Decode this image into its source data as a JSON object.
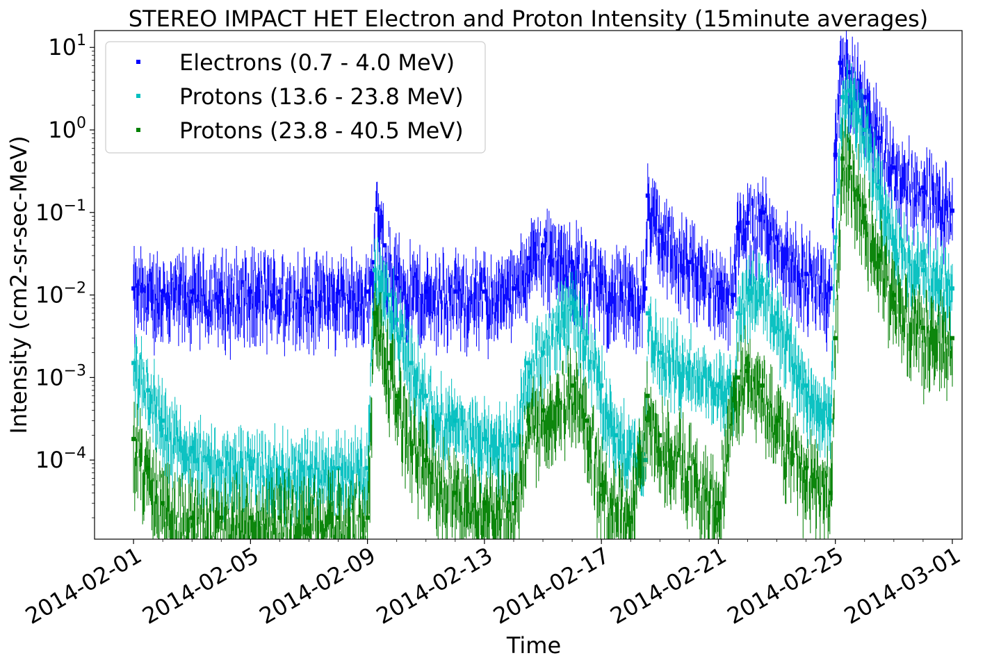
{
  "chart_data": {
    "type": "scatter",
    "title": "STEREO IMPACT HET Electron and Proton Intensity (15minute averages)",
    "xlabel": "Time",
    "ylabel": "Intensity (cm2-sr-sec-MeV)",
    "scale_y": "log",
    "xlim": [
      "2014-01-30T16:00",
      "2014-03-01T08:00"
    ],
    "ylim": [
      1.1e-05,
      16
    ],
    "grid": false,
    "legend_position": "top-left",
    "x_ticks": [
      "2014-02-01",
      "2014-02-05",
      "2014-02-09",
      "2014-02-13",
      "2014-02-17",
      "2014-02-21",
      "2014-02-25",
      "2014-03-01"
    ],
    "y_ticks": [
      {
        "value": 0.0001,
        "base": "10",
        "exp": "−4"
      },
      {
        "value": 0.001,
        "base": "10",
        "exp": "−3"
      },
      {
        "value": 0.01,
        "base": "10",
        "exp": "−2"
      },
      {
        "value": 0.1,
        "base": "10",
        "exp": "−1"
      },
      {
        "value": 1,
        "base": "10",
        "exp": "0"
      },
      {
        "value": 10,
        "base": "10",
        "exp": "1"
      }
    ],
    "series": [
      {
        "name": "Electrons (0.7 - 4.0 MeV)",
        "color": "#0000ff",
        "scatter_factor": 2.8,
        "points": [
          [
            "2014-02-01",
            0.012
          ],
          [
            "2014-02-02",
            0.011
          ],
          [
            "2014-02-03",
            0.011
          ],
          [
            "2014-02-04",
            0.011
          ],
          [
            "2014-02-05",
            0.011
          ],
          [
            "2014-02-06",
            0.011
          ],
          [
            "2014-02-07",
            0.011
          ],
          [
            "2014-02-08",
            0.011
          ],
          [
            "2014-02-09",
            0.011
          ],
          [
            "2014-02-09T05:00",
            0.025
          ],
          [
            "2014-02-09T08:00",
            0.11
          ],
          [
            "2014-02-09T14:00",
            0.04
          ],
          [
            "2014-02-10",
            0.016
          ],
          [
            "2014-02-11",
            0.011
          ],
          [
            "2014-02-12",
            0.011
          ],
          [
            "2014-02-13",
            0.011
          ],
          [
            "2014-02-14",
            0.012
          ],
          [
            "2014-02-14T12:00",
            0.028
          ],
          [
            "2014-02-15",
            0.04
          ],
          [
            "2014-02-16",
            0.025
          ],
          [
            "2014-02-17",
            0.014
          ],
          [
            "2014-02-18",
            0.01
          ],
          [
            "2014-02-18T12:00",
            0.012
          ],
          [
            "2014-02-18T14:00",
            0.16
          ],
          [
            "2014-02-19",
            0.06
          ],
          [
            "2014-02-20",
            0.025
          ],
          [
            "2014-02-21",
            0.014
          ],
          [
            "2014-02-21T12:00",
            0.01
          ],
          [
            "2014-02-21T16:00",
            0.065
          ],
          [
            "2014-02-22",
            0.075
          ],
          [
            "2014-02-22T12:00",
            0.1
          ],
          [
            "2014-02-23",
            0.05
          ],
          [
            "2014-02-24",
            0.018
          ],
          [
            "2014-02-24T20:00",
            0.012
          ],
          [
            "2014-02-25",
            0.5
          ],
          [
            "2014-02-25T04:00",
            6.5
          ],
          [
            "2014-02-25T12:00",
            5.0
          ],
          [
            "2014-02-26",
            2.5
          ],
          [
            "2014-02-26T12:00",
            0.8
          ],
          [
            "2014-02-27",
            0.35
          ],
          [
            "2014-02-28",
            0.2
          ],
          [
            "2014-03-01",
            0.105
          ]
        ]
      },
      {
        "name": "Protons (13.6 - 23.8 MeV)",
        "color": "#00bfbf",
        "scatter_factor": 2.4,
        "points": [
          [
            "2014-02-01",
            0.0015
          ],
          [
            "2014-02-01T12:00",
            0.0007
          ],
          [
            "2014-02-02",
            0.0003
          ],
          [
            "2014-02-03",
            0.00014
          ],
          [
            "2014-02-04",
            9e-05
          ],
          [
            "2014-02-05",
            8e-05
          ],
          [
            "2014-02-06",
            8e-05
          ],
          [
            "2014-02-07",
            8e-05
          ],
          [
            "2014-02-08",
            8e-05
          ],
          [
            "2014-02-09",
            8e-05
          ],
          [
            "2014-02-09T06:00",
            0.02
          ],
          [
            "2014-02-09T18:00",
            0.01
          ],
          [
            "2014-02-10",
            0.005
          ],
          [
            "2014-02-10T12:00",
            0.0015
          ],
          [
            "2014-02-11",
            0.0006
          ],
          [
            "2014-02-12",
            0.0003
          ],
          [
            "2014-02-13",
            0.00018
          ],
          [
            "2014-02-14",
            0.00015
          ],
          [
            "2014-02-14T12:00",
            0.0015
          ],
          [
            "2014-02-15",
            0.002
          ],
          [
            "2014-02-15T12:00",
            0.004
          ],
          [
            "2014-02-16",
            0.008
          ],
          [
            "2014-02-16T12:00",
            0.003
          ],
          [
            "2014-02-17",
            0.0008
          ],
          [
            "2014-02-17T12:00",
            0.0002
          ],
          [
            "2014-02-18T12:00",
            0.0001
          ],
          [
            "2014-02-18T14:00",
            0.006
          ],
          [
            "2014-02-19",
            0.002
          ],
          [
            "2014-02-20",
            0.0015
          ],
          [
            "2014-02-21",
            0.0008
          ],
          [
            "2014-02-21T12:00",
            0.0006
          ],
          [
            "2014-02-21T16:00",
            0.006
          ],
          [
            "2014-02-22",
            0.012
          ],
          [
            "2014-02-22T12:00",
            0.015
          ],
          [
            "2014-02-23",
            0.006
          ],
          [
            "2014-02-24",
            0.0008
          ],
          [
            "2014-02-24T20:00",
            0.0003
          ],
          [
            "2014-02-25",
            0.05
          ],
          [
            "2014-02-25T06:00",
            2.5
          ],
          [
            "2014-02-25T12:00",
            3.0
          ],
          [
            "2014-02-26",
            1.0
          ],
          [
            "2014-02-26T12:00",
            0.2
          ],
          [
            "2014-02-27",
            0.05
          ],
          [
            "2014-02-28",
            0.02
          ],
          [
            "2014-03-01",
            0.012
          ]
        ]
      },
      {
        "name": "Protons (23.8 - 40.5 MeV)",
        "color": "#008000",
        "scatter_factor": 3.2,
        "points": [
          [
            "2014-02-01",
            0.00018
          ],
          [
            "2014-02-01T12:00",
            8e-05
          ],
          [
            "2014-02-02",
            3e-05
          ],
          [
            "2014-02-03",
            2e-05
          ],
          [
            "2014-02-04",
            2e-05
          ],
          [
            "2014-02-05",
            2e-05
          ],
          [
            "2014-02-06",
            2e-05
          ],
          [
            "2014-02-07",
            2e-05
          ],
          [
            "2014-02-08",
            2e-05
          ],
          [
            "2014-02-09",
            2e-05
          ],
          [
            "2014-02-09T06:00",
            0.006
          ],
          [
            "2014-02-09T18:00",
            0.0015
          ],
          [
            "2014-02-10",
            0.0006
          ],
          [
            "2014-02-11",
            0.0001
          ],
          [
            "2014-02-12",
            4e-05
          ],
          [
            "2014-02-13",
            3e-05
          ],
          [
            "2014-02-14",
            3e-05
          ],
          [
            "2014-02-14T12:00",
            0.0003
          ],
          [
            "2014-02-15",
            0.0004
          ],
          [
            "2014-02-16",
            0.0008
          ],
          [
            "2014-02-16T12:00",
            0.0003
          ],
          [
            "2014-02-17",
            5e-05
          ],
          [
            "2014-02-18",
            2e-05
          ],
          [
            "2014-02-18T14:00",
            0.0006
          ],
          [
            "2014-02-19",
            0.0002
          ],
          [
            "2014-02-20",
            8e-05
          ],
          [
            "2014-02-21",
            3e-05
          ],
          [
            "2014-02-21T16:00",
            0.001
          ],
          [
            "2014-02-22",
            0.0012
          ],
          [
            "2014-02-22T12:00",
            0.0008
          ],
          [
            "2014-02-23",
            0.0003
          ],
          [
            "2014-02-24",
            8e-05
          ],
          [
            "2014-02-24T20:00",
            4e-05
          ],
          [
            "2014-02-25",
            0.003
          ],
          [
            "2014-02-25T06:00",
            0.45
          ],
          [
            "2014-02-25T12:00",
            0.35
          ],
          [
            "2014-02-26",
            0.12
          ],
          [
            "2014-02-26T12:00",
            0.03
          ],
          [
            "2014-02-27",
            0.01
          ],
          [
            "2014-02-28",
            0.004
          ],
          [
            "2014-03-01",
            0.003
          ]
        ]
      }
    ]
  }
}
